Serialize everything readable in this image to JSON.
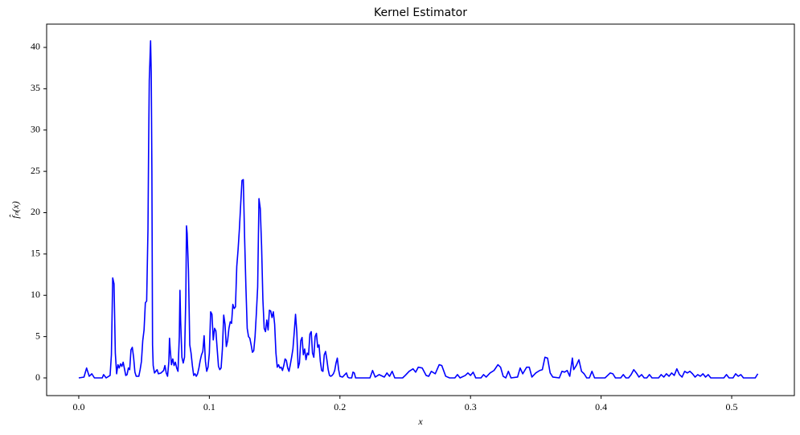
{
  "chart_data": {
    "type": "line",
    "title": "Kernel Estimator",
    "xlabel": "x",
    "ylabel": "f̂ₙ(x)",
    "color": "#0000ff",
    "x": [
      0,
      0.004,
      0.006,
      0.008,
      0.01,
      0.012,
      0.018,
      0.019,
      0.021,
      0.024,
      0.025,
      0.026,
      0.027,
      0.028,
      0.029,
      0.03,
      0.031,
      0.032,
      0.033,
      0.034,
      0.035,
      0.036,
      0.037,
      0.038,
      0.039,
      0.04,
      0.041,
      0.042,
      0.043,
      0.044,
      0.046,
      0.047,
      0.048,
      0.049,
      0.05,
      0.051,
      0.052,
      0.053,
      0.0535,
      0.054,
      0.055,
      0.0555,
      0.056,
      0.0565,
      0.057,
      0.058,
      0.059,
      0.06,
      0.061,
      0.063,
      0.065,
      0.066,
      0.067,
      0.068,
      0.069,
      0.0695,
      0.07,
      0.071,
      0.072,
      0.073,
      0.074,
      0.075,
      0.076,
      0.077,
      0.0775,
      0.078,
      0.079,
      0.08,
      0.081,
      0.082,
      0.0825,
      0.083,
      0.084,
      0.085,
      0.086,
      0.087,
      0.088,
      0.089,
      0.09,
      0.091,
      0.092,
      0.093,
      0.094,
      0.095,
      0.096,
      0.097,
      0.098,
      0.099,
      0.1,
      0.101,
      0.102,
      0.103,
      0.104,
      0.105,
      0.106,
      0.107,
      0.108,
      0.109,
      0.11,
      0.111,
      0.112,
      0.113,
      0.114,
      0.115,
      0.116,
      0.117,
      0.118,
      0.119,
      0.12,
      0.121,
      0.122,
      0.123,
      0.124,
      0.125,
      0.126,
      0.127,
      0.128,
      0.129,
      0.13,
      0.131,
      0.132,
      0.133,
      0.134,
      0.135,
      0.136,
      0.137,
      0.138,
      0.139,
      0.14,
      0.141,
      0.142,
      0.143,
      0.144,
      0.145,
      0.146,
      0.147,
      0.148,
      0.149,
      0.15,
      0.151,
      0.152,
      0.153,
      0.154,
      0.155,
      0.156,
      0.157,
      0.158,
      0.159,
      0.16,
      0.161,
      0.162,
      0.163,
      0.164,
      0.165,
      0.166,
      0.167,
      0.168,
      0.169,
      0.17,
      0.171,
      0.172,
      0.173,
      0.174,
      0.175,
      0.176,
      0.177,
      0.178,
      0.179,
      0.18,
      0.181,
      0.182,
      0.183,
      0.184,
      0.185,
      0.186,
      0.187,
      0.188,
      0.189,
      0.19,
      0.191,
      0.192,
      0.193,
      0.194,
      0.195,
      0.196,
      0.197,
      0.198,
      0.199,
      0.2,
      0.202,
      0.205,
      0.206,
      0.207,
      0.209,
      0.21,
      0.211,
      0.212,
      0.223,
      0.225,
      0.227,
      0.23,
      0.234,
      0.236,
      0.238,
      0.24,
      0.242,
      0.248,
      0.25,
      0.253,
      0.256,
      0.258,
      0.26,
      0.263,
      0.266,
      0.268,
      0.27,
      0.273,
      0.276,
      0.278,
      0.281,
      0.284,
      0.288,
      0.29,
      0.292,
      0.296,
      0.298,
      0.3,
      0.302,
      0.304,
      0.308,
      0.31,
      0.312,
      0.315,
      0.318,
      0.321,
      0.323,
      0.325,
      0.327,
      0.329,
      0.331,
      0.336,
      0.338,
      0.34,
      0.343,
      0.345,
      0.347,
      0.35,
      0.353,
      0.355,
      0.357,
      0.359,
      0.361,
      0.363,
      0.368,
      0.37,
      0.372,
      0.374,
      0.376,
      0.378,
      0.379,
      0.381,
      0.383,
      0.385,
      0.387,
      0.389,
      0.391,
      0.393,
      0.395,
      0.403,
      0.405,
      0.407,
      0.409,
      0.411,
      0.415,
      0.417,
      0.419,
      0.421,
      0.423,
      0.425,
      0.427,
      0.429,
      0.431,
      0.433,
      0.435,
      0.437,
      0.439,
      0.444,
      0.446,
      0.448,
      0.45,
      0.452,
      0.454,
      0.456,
      0.458,
      0.46,
      0.462,
      0.464,
      0.466,
      0.468,
      0.47,
      0.472,
      0.474,
      0.476,
      0.478,
      0.48,
      0.482,
      0.484,
      0.494,
      0.496,
      0.498,
      0.501,
      0.503,
      0.505,
      0.507,
      0.509,
      0.518,
      0.52
    ],
    "values": [
      0,
      0.1,
      1.2,
      0.2,
      0.5,
      0,
      0,
      0.4,
      0,
      0.3,
      2.8,
      12.1,
      11.4,
      3,
      0.5,
      1.6,
      1.2,
      1.7,
      1.4,
      1.9,
      1.1,
      0.3,
      0.4,
      1.2,
      1.0,
      3.4,
      3.7,
      2.5,
      0.7,
      0.2,
      0.2,
      1,
      2,
      4.5,
      5.8,
      9.1,
      9.3,
      18,
      28,
      36,
      40.8,
      37,
      25,
      4,
      1.5,
      0.6,
      0.8,
      1,
      0.5,
      0.6,
      0.9,
      1.5,
      0.6,
      0.2,
      2,
      4.8,
      3.5,
      1.6,
      2.3,
      1.5,
      1.9,
      1.2,
      0.8,
      5,
      10.6,
      7,
      2.5,
      1.8,
      2.5,
      10,
      18.4,
      17.5,
      13,
      4,
      3,
      1.5,
      0.3,
      0.5,
      0.2,
      0.5,
      1.2,
      2.1,
      2.8,
      3.2,
      5.1,
      2,
      0.8,
      1.3,
      3,
      8,
      7.7,
      4.6,
      6,
      5.7,
      3.5,
      1.4,
      1,
      1.2,
      3.5,
      7.6,
      6.5,
      3.8,
      4.5,
      6,
      6.8,
      6.6,
      8.9,
      8.4,
      8.6,
      13.5,
      15.5,
      18,
      21,
      23.9,
      24,
      17,
      11,
      6,
      5,
      4.8,
      4,
      3.1,
      3.3,
      5,
      7.8,
      11,
      21.7,
      20.5,
      16,
      9.5,
      6,
      5.6,
      7,
      5.8,
      8.2,
      8.1,
      7.3,
      8,
      6.5,
      3,
      1.3,
      1.6,
      1.2,
      1.3,
      0.9,
      1.5,
      2.3,
      2.1,
      1.2,
      0.8,
      1.6,
      2.5,
      3.5,
      5.5,
      7.7,
      5.5,
      1.2,
      1.8,
      4.5,
      4.9,
      2.8,
      3.5,
      2.2,
      3,
      2.8,
      5.3,
      5.6,
      3,
      2.5,
      5,
      5.4,
      3.7,
      4,
      2,
      0.9,
      0.8,
      2.8,
      3.2,
      2.2,
      1,
      0.3,
      0.2,
      0.3,
      0.5,
      0.9,
      1.8,
      2.4,
      1,
      0.2,
      0.1,
      0.6,
      0.1,
      0,
      0,
      0.7,
      0.6,
      0,
      0,
      0.9,
      0.1,
      0.4,
      0.1,
      0.6,
      0.2,
      0.8,
      0,
      0,
      0.3,
      0.8,
      1.1,
      0.7,
      1.3,
      1.2,
      0.3,
      0.2,
      0.8,
      0.5,
      1.6,
      1.5,
      0.2,
      0,
      0,
      0.4,
      0,
      0.3,
      0.6,
      0.3,
      0.7,
      0,
      0,
      0.4,
      0.1,
      0.6,
      0.9,
      1.6,
      1.3,
      0.2,
      0,
      0.8,
      0,
      0.1,
      1.2,
      0.5,
      1.3,
      1.3,
      0.1,
      0.6,
      0.9,
      1,
      2.5,
      2.4,
      0.6,
      0.1,
      0,
      0.8,
      0.7,
      0.9,
      0.2,
      2.4,
      1,
      1.5,
      2.2,
      0.8,
      0.5,
      0,
      0,
      0.8,
      0,
      0,
      0.3,
      0.6,
      0.5,
      0,
      0,
      0.4,
      0,
      0,
      0.4,
      1,
      0.6,
      0.1,
      0.4,
      0,
      0,
      0.4,
      0,
      0,
      0.4,
      0.1,
      0.5,
      0.2,
      0.6,
      0.3,
      1.1,
      0.4,
      0.1,
      0.8,
      0.6,
      0.8,
      0.5,
      0.1,
      0.4,
      0.2,
      0.5,
      0.1,
      0.4,
      0,
      0,
      0.4,
      0,
      0,
      0.5,
      0.2,
      0.4,
      0,
      0,
      0.5
    ],
    "xlim": [
      -0.0246,
      0.548
    ],
    "ylim": [
      -2.14,
      42.82
    ],
    "xticks": [
      {
        "value": 0,
        "label": "0.0"
      },
      0.1,
      0.2,
      0.3,
      0.4,
      0.5
    ],
    "yticks": [
      0,
      5,
      10,
      15,
      20,
      25,
      30,
      35,
      40
    ]
  }
}
